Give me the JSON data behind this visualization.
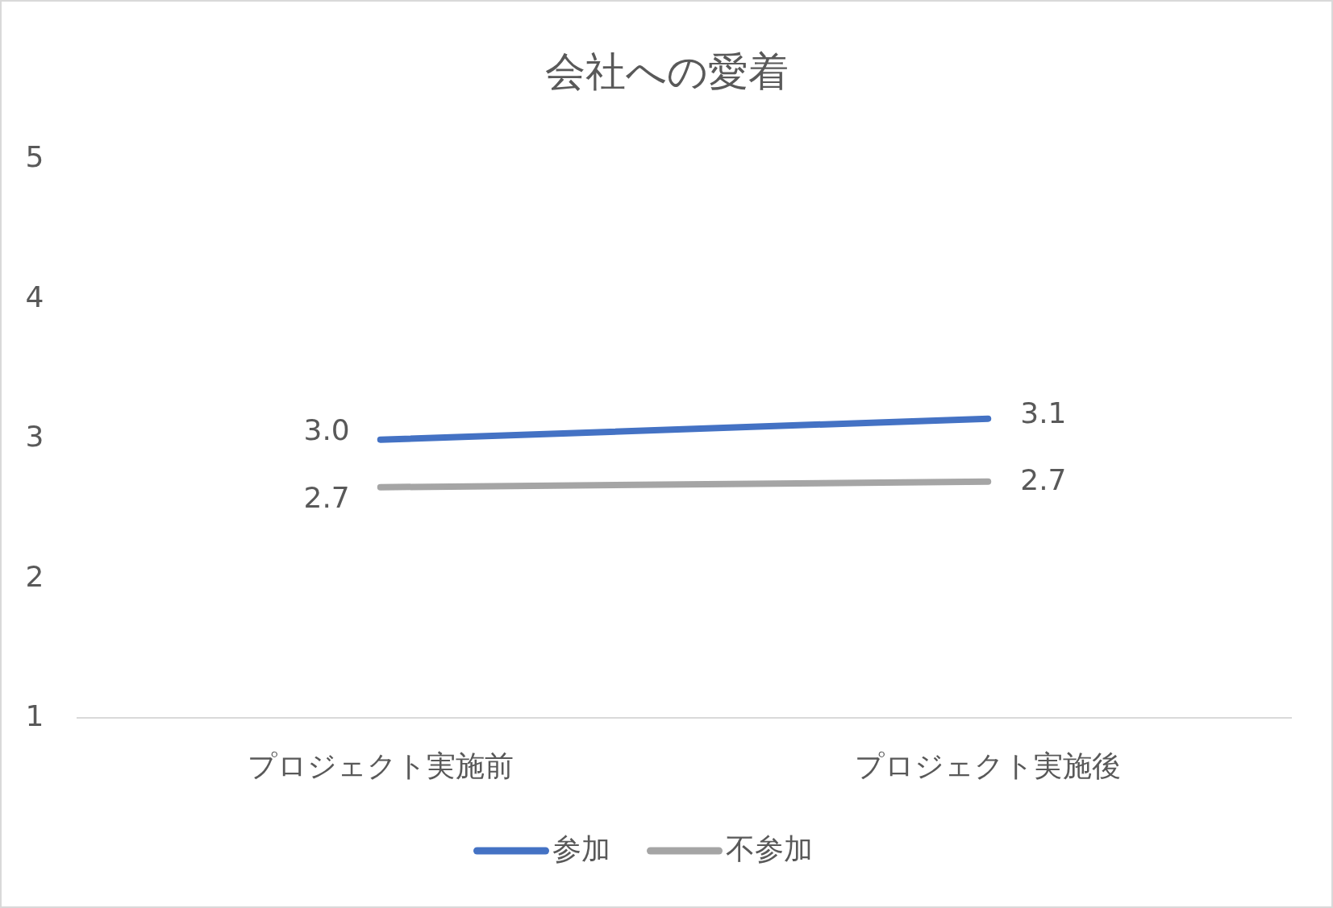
{
  "chart_data": {
    "type": "line",
    "title": "会社への愛着",
    "categories": [
      "プロジェクト実施前",
      "プロジェクト実施後"
    ],
    "series": [
      {
        "name": "参加",
        "color": "#4472c4",
        "values": [
          2.99,
          3.14
        ],
        "value_labels": [
          "3.0",
          "3.1"
        ]
      },
      {
        "name": "不参加",
        "color": "#a5a5a5",
        "values": [
          2.65,
          2.69
        ],
        "value_labels": [
          "2.7",
          "2.7"
        ]
      }
    ],
    "ylim": [
      1,
      5
    ],
    "yticks": [
      1,
      2,
      3,
      4,
      5
    ],
    "grid": false,
    "legend": "bottom",
    "marker": "none",
    "line_style": "solid"
  }
}
